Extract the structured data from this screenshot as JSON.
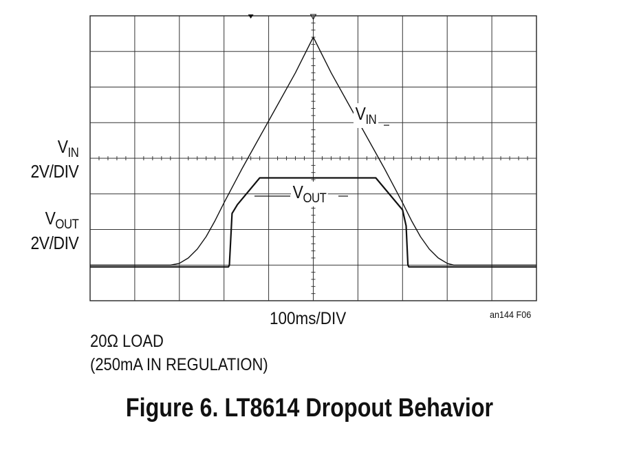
{
  "chart_data": {
    "type": "line",
    "title": "Figure 6. LT8614 Dropout Behavior",
    "x_axis": {
      "label": "100ms/DIV",
      "unit": "ms",
      "per_division": 100,
      "divisions": 10,
      "range": [
        0,
        1000
      ]
    },
    "y_axis": {
      "unit": "div",
      "divisions": 8,
      "range": [
        0,
        8
      ]
    },
    "grid": true,
    "series": [
      {
        "name": "VIN",
        "scale": "2V/DIV",
        "x_ms": [
          0,
          180,
          200,
          220,
          240,
          260,
          280,
          300,
          340,
          380,
          420,
          460,
          500,
          540,
          580,
          620,
          660,
          700,
          720,
          740,
          760,
          780,
          800,
          815,
          1000
        ],
        "y_div": [
          1.0,
          1.0,
          1.05,
          1.2,
          1.45,
          1.8,
          2.25,
          2.75,
          3.7,
          4.6,
          5.5,
          6.4,
          7.4,
          6.4,
          5.5,
          4.6,
          3.7,
          2.75,
          2.25,
          1.8,
          1.45,
          1.2,
          1.05,
          1.0,
          1.0
        ]
      },
      {
        "name": "VOUT",
        "scale": "2V/DIV",
        "x_ms": [
          0,
          310,
          312,
          318,
          330,
          380,
          640,
          700,
          708,
          712,
          714,
          1000
        ],
        "y_div": [
          0.95,
          0.95,
          1.0,
          2.45,
          2.7,
          3.45,
          3.45,
          2.55,
          2.1,
          1.0,
          0.95,
          0.95
        ]
      }
    ]
  },
  "labels": {
    "vin_left": "V",
    "vin_left_sub": "IN",
    "vin_scale": "2V/DIV",
    "vout_left": "V",
    "vout_left_sub": "OUT",
    "vout_scale": "2V/DIV",
    "vin_trace": "V",
    "vin_trace_sub": "IN",
    "vout_trace": "V",
    "vout_trace_sub": "OUT",
    "timebase": "100ms/DIV",
    "ref_code": "an144 F06",
    "note_line1": "20Ω LOAD",
    "note_line2": "(250mA IN REGULATION)",
    "caption": "Figure 6. LT8614 Dropout Behavior"
  }
}
